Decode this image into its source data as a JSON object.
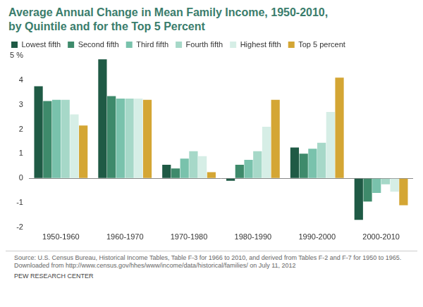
{
  "chart_data": {
    "type": "bar",
    "title": [
      "Average Annual Change in Mean Family Income, 1950-2010,",
      "by Quintile and for the Top 5 Percent"
    ],
    "categories": [
      "1950-1960",
      "1960-1970",
      "1970-1980",
      "1980-1990",
      "1990-2000",
      "2000-2010"
    ],
    "series": [
      {
        "name": "Lowest fifth",
        "color": "#1f5a45",
        "values": [
          3.75,
          4.85,
          0.55,
          -0.1,
          1.25,
          -1.7
        ]
      },
      {
        "name": "Second fifth",
        "color": "#3e8a6b",
        "values": [
          3.15,
          3.35,
          0.4,
          0.55,
          1.0,
          -0.95
        ]
      },
      {
        "name": "Third fifth",
        "color": "#79c2ac",
        "values": [
          3.2,
          3.25,
          0.8,
          0.75,
          1.2,
          -0.6
        ]
      },
      {
        "name": "Fourth fifth",
        "color": "#a6d8c8",
        "values": [
          3.2,
          3.25,
          1.1,
          1.1,
          1.45,
          -0.25
        ]
      },
      {
        "name": "Highest fifth",
        "color": "#d6eee6",
        "values": [
          2.6,
          3.25,
          0.9,
          2.1,
          2.7,
          -0.55
        ]
      },
      {
        "name": "Top 5 percent",
        "color": "#d4a634",
        "values": [
          2.15,
          3.2,
          0.25,
          3.2,
          4.1,
          -1.1
        ]
      }
    ],
    "ylim": [
      -2,
      5
    ],
    "yticks": [
      -2,
      -1,
      0,
      1,
      2,
      3,
      4,
      {
        "value": 5,
        "label": "5 %"
      }
    ],
    "grid": false,
    "legend": "top",
    "source": "Source: U.S. Census Bureau, Historical Income Tables, Table F-3 for 1966 to 2010, and derived from Tables F-2 and F-7 for 1950 to 1965. Downloaded from http://www.census.gov/hhes/www/income/data/historical/families/ on July 11, 2012",
    "credit": "PEW RESEARCH CENTER"
  }
}
